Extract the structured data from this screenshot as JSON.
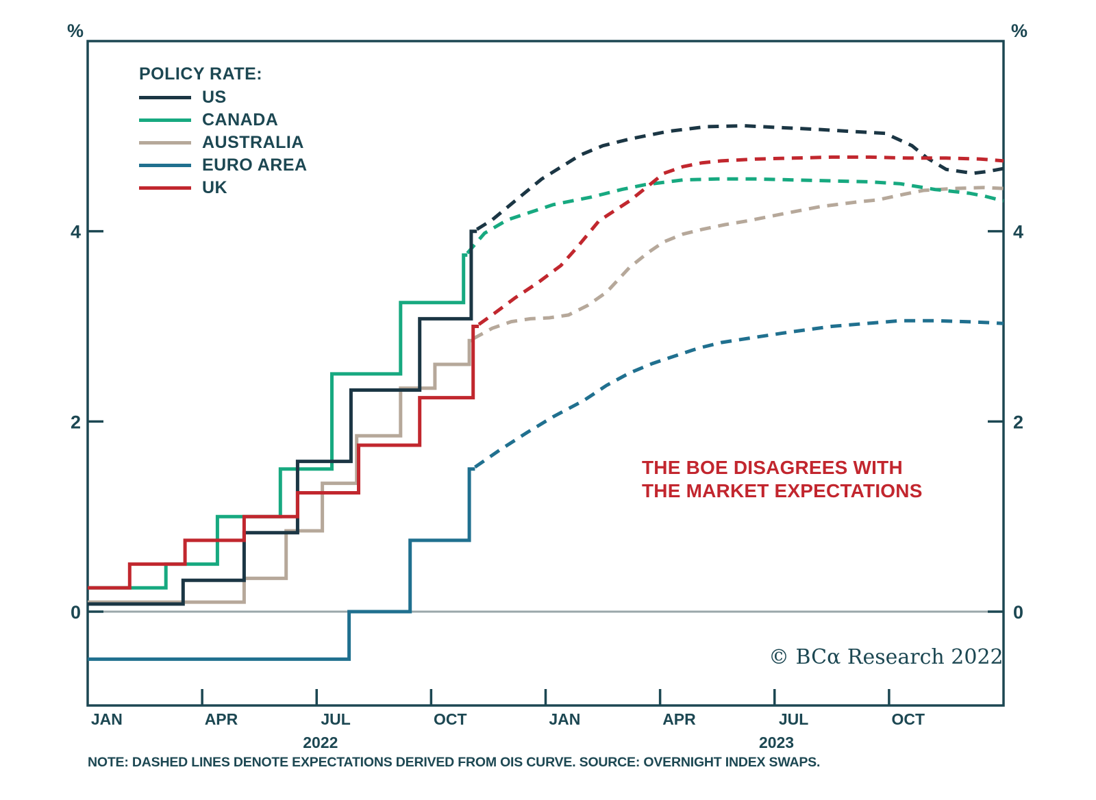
{
  "labels": {
    "percent": "%",
    "annotation_line1": "THE BOE DISAGREES WITH",
    "annotation_line2": "THE MARKET EXPECTATIONS",
    "copyright": "© BCα Research 2022",
    "note": "NOTE: DASHED LINES DENOTE EXPECTATIONS DERIVED FROM OIS CURVE. SOURCE: OVERNIGHT INDEX SWAPS."
  },
  "theme": {
    "axis_color": "#1c4752",
    "text_color": "#1c4752",
    "zero_line_color": "#9aa7aa",
    "annotation_color": "#c2262e"
  },
  "chart_data": {
    "type": "line",
    "title": "",
    "legend_title": "POLICY RATE:",
    "legend_position": "top-left-inside",
    "x_unit": "months since Jan 1 2022",
    "x_range": [
      0,
      24
    ],
    "y_range": [
      -1,
      6
    ],
    "y_axis_unit": "%",
    "grid": "zero-line-only",
    "line_meaning": "solid = actual policy rate, dashed = OIS-implied expectations",
    "y_ticks": [
      4,
      2,
      0
    ],
    "x_tick_months": [
      3,
      6,
      9,
      12,
      15,
      18,
      21
    ],
    "x_labels": [
      {
        "label": "JAN",
        "m": 0.5
      },
      {
        "label": "APR",
        "m": 3.5
      },
      {
        "label": "JUL",
        "m": 6.5
      },
      {
        "label": "OCT",
        "m": 9.5
      },
      {
        "label": "JAN",
        "m": 12.5
      },
      {
        "label": "APR",
        "m": 15.5
      },
      {
        "label": "JUL",
        "m": 18.5
      },
      {
        "label": "OCT",
        "m": 21.5
      }
    ],
    "year_labels": [
      {
        "label": "2022",
        "m": 6.1
      },
      {
        "label": "2023",
        "m": 18.05
      }
    ],
    "series": [
      {
        "id": "us",
        "label": "US",
        "color": "#1b3644",
        "solid": [
          [
            0,
            0.08
          ],
          [
            2.5,
            0.08
          ],
          [
            2.5,
            0.33
          ],
          [
            4.1,
            0.33
          ],
          [
            4.1,
            0.83
          ],
          [
            5.5,
            0.83
          ],
          [
            5.5,
            1.58
          ],
          [
            6.9,
            1.58
          ],
          [
            6.9,
            2.33
          ],
          [
            8.7,
            2.33
          ],
          [
            8.7,
            3.08
          ],
          [
            10.05,
            3.08
          ],
          [
            10.05,
            4.0
          ],
          [
            10.2,
            4.0
          ]
        ],
        "dashed": [
          [
            10.2,
            4.02
          ],
          [
            10.6,
            4.12
          ],
          [
            11.2,
            4.32
          ],
          [
            11.9,
            4.55
          ],
          [
            12.5,
            4.7
          ],
          [
            12.9,
            4.8
          ],
          [
            13.5,
            4.9
          ],
          [
            14.2,
            4.97
          ],
          [
            15.2,
            5.05
          ],
          [
            16.2,
            5.1
          ],
          [
            17.2,
            5.11
          ],
          [
            18.2,
            5.09
          ],
          [
            19.2,
            5.07
          ],
          [
            20,
            5.05
          ],
          [
            20.9,
            5.03
          ],
          [
            21.6,
            4.9
          ],
          [
            22,
            4.77
          ],
          [
            22.5,
            4.65
          ],
          [
            23.2,
            4.61
          ],
          [
            23.6,
            4.63
          ],
          [
            24,
            4.66
          ]
        ]
      },
      {
        "id": "canada",
        "label": "CANADA",
        "color": "#17a980",
        "solid": [
          [
            0,
            0.25
          ],
          [
            2.05,
            0.25
          ],
          [
            2.05,
            0.5
          ],
          [
            3.4,
            0.5
          ],
          [
            3.4,
            1.0
          ],
          [
            5.05,
            1.0
          ],
          [
            5.05,
            1.5
          ],
          [
            6.4,
            1.5
          ],
          [
            6.4,
            2.5
          ],
          [
            8.2,
            2.5
          ],
          [
            8.2,
            3.25
          ],
          [
            9.85,
            3.25
          ],
          [
            9.85,
            3.75
          ],
          [
            9.95,
            3.75
          ]
        ],
        "dashed": [
          [
            9.95,
            3.77
          ],
          [
            10.4,
            3.98
          ],
          [
            11,
            4.12
          ],
          [
            11.6,
            4.2
          ],
          [
            12.2,
            4.28
          ],
          [
            13.2,
            4.36
          ],
          [
            14,
            4.44
          ],
          [
            14.6,
            4.49
          ],
          [
            15.6,
            4.54
          ],
          [
            16.5,
            4.55
          ],
          [
            17.5,
            4.55
          ],
          [
            18.5,
            4.54
          ],
          [
            19.5,
            4.53
          ],
          [
            20.5,
            4.52
          ],
          [
            21.3,
            4.5
          ],
          [
            22.2,
            4.44
          ],
          [
            23.1,
            4.4
          ],
          [
            23.5,
            4.37
          ],
          [
            24,
            4.32
          ]
        ]
      },
      {
        "id": "australia",
        "label": "AUSTRALIA",
        "color": "#b6a89a",
        "solid": [
          [
            0,
            0.1
          ],
          [
            4.1,
            0.1
          ],
          [
            4.1,
            0.35
          ],
          [
            5.2,
            0.35
          ],
          [
            5.2,
            0.85
          ],
          [
            6.15,
            0.85
          ],
          [
            6.15,
            1.35
          ],
          [
            7.05,
            1.35
          ],
          [
            7.05,
            1.85
          ],
          [
            8.2,
            1.85
          ],
          [
            8.2,
            2.35
          ],
          [
            9.1,
            2.35
          ],
          [
            9.1,
            2.6
          ],
          [
            10.0,
            2.6
          ],
          [
            10.0,
            2.85
          ],
          [
            10.1,
            2.85
          ]
        ],
        "dashed": [
          [
            10.1,
            2.87
          ],
          [
            10.6,
            2.98
          ],
          [
            11.1,
            3.05
          ],
          [
            11.6,
            3.08
          ],
          [
            12.1,
            3.09
          ],
          [
            12.6,
            3.12
          ],
          [
            13.1,
            3.22
          ],
          [
            13.6,
            3.36
          ],
          [
            14.2,
            3.62
          ],
          [
            14.7,
            3.78
          ],
          [
            15.1,
            3.89
          ],
          [
            15.6,
            3.97
          ],
          [
            16.1,
            4.02
          ],
          [
            16.7,
            4.07
          ],
          [
            17.3,
            4.11
          ],
          [
            18.3,
            4.19
          ],
          [
            19.2,
            4.26
          ],
          [
            20.2,
            4.31
          ],
          [
            20.7,
            4.33
          ],
          [
            21.4,
            4.39
          ],
          [
            21.9,
            4.43
          ],
          [
            22.7,
            4.45
          ],
          [
            23.5,
            4.46
          ],
          [
            24,
            4.45
          ]
        ]
      },
      {
        "id": "euro-area",
        "label": "EURO AREA",
        "color": "#20708f",
        "solid": [
          [
            0,
            -0.5
          ],
          [
            6.85,
            -0.5
          ],
          [
            6.85,
            0
          ],
          [
            8.45,
            0
          ],
          [
            8.45,
            0.75
          ],
          [
            10.0,
            0.75
          ],
          [
            10.0,
            1.5
          ],
          [
            10.15,
            1.5
          ]
        ],
        "dashed": [
          [
            10.15,
            1.52
          ],
          [
            10.8,
            1.7
          ],
          [
            11.5,
            1.88
          ],
          [
            12.2,
            2.05
          ],
          [
            13,
            2.22
          ],
          [
            13.6,
            2.38
          ],
          [
            14.2,
            2.51
          ],
          [
            14.8,
            2.61
          ],
          [
            15.4,
            2.69
          ],
          [
            16,
            2.77
          ],
          [
            16.6,
            2.83
          ],
          [
            17.4,
            2.88
          ],
          [
            18.4,
            2.94
          ],
          [
            19.5,
            3.0
          ],
          [
            20.4,
            3.03
          ],
          [
            21.3,
            3.06
          ],
          [
            22.2,
            3.06
          ],
          [
            23,
            3.05
          ],
          [
            23.6,
            3.04
          ],
          [
            24,
            3.03
          ]
        ]
      },
      {
        "id": "uk",
        "label": "UK",
        "color": "#c1272e",
        "solid": [
          [
            0,
            0.25
          ],
          [
            1.1,
            0.25
          ],
          [
            1.1,
            0.5
          ],
          [
            2.55,
            0.5
          ],
          [
            2.55,
            0.75
          ],
          [
            4.1,
            0.75
          ],
          [
            4.1,
            1.0
          ],
          [
            5.5,
            1.0
          ],
          [
            5.5,
            1.25
          ],
          [
            7.1,
            1.25
          ],
          [
            7.1,
            1.75
          ],
          [
            8.7,
            1.75
          ],
          [
            8.7,
            2.25
          ],
          [
            10.1,
            2.25
          ],
          [
            10.1,
            3.0
          ],
          [
            10.25,
            3.0
          ]
        ],
        "dashed": [
          [
            10.25,
            3.02
          ],
          [
            10.6,
            3.12
          ],
          [
            11.2,
            3.3
          ],
          [
            11.8,
            3.46
          ],
          [
            12.4,
            3.64
          ],
          [
            12.8,
            3.82
          ],
          [
            13.4,
            4.11
          ],
          [
            14.2,
            4.32
          ],
          [
            14.7,
            4.48
          ],
          [
            15.1,
            4.61
          ],
          [
            15.6,
            4.68
          ],
          [
            16.1,
            4.72
          ],
          [
            16.6,
            4.74
          ],
          [
            17.5,
            4.76
          ],
          [
            18.5,
            4.77
          ],
          [
            19.5,
            4.78
          ],
          [
            20.5,
            4.78
          ],
          [
            21.5,
            4.77
          ],
          [
            22.5,
            4.77
          ],
          [
            23.4,
            4.76
          ],
          [
            24,
            4.74
          ]
        ]
      }
    ]
  }
}
